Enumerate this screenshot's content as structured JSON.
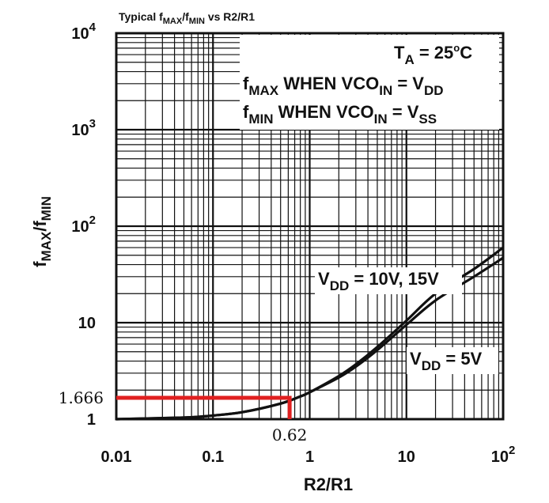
{
  "chart_data": {
    "type": "line",
    "title": {
      "base": "Typical f",
      "sub1": "MAX",
      "mid": "/f",
      "sub2": "MIN",
      "tail": " vs R2/R1"
    },
    "xlabel": "R2/R1",
    "ylabel": {
      "f1": "f",
      "s1": "MAX",
      "mid": "/f",
      "s2": "MIN"
    },
    "x_scale": "log",
    "y_scale": "log",
    "xlim": [
      0.01,
      100
    ],
    "ylim": [
      1,
      10000
    ],
    "grid": true,
    "x_ticks": [
      {
        "value": 0.01,
        "label": "0.01"
      },
      {
        "value": 0.1,
        "label": "0.1"
      },
      {
        "value": 1,
        "label": "1"
      },
      {
        "value": 10,
        "label": "10"
      },
      {
        "value": 100,
        "label": "10",
        "sup": "2"
      }
    ],
    "y_ticks": [
      {
        "value": 1,
        "label": "1"
      },
      {
        "value": 10,
        "label": "10"
      },
      {
        "value": 100,
        "label": "10",
        "sup": "2"
      },
      {
        "value": 1000,
        "label": "10",
        "sup": "3"
      },
      {
        "value": 10000,
        "label": "10",
        "sup": "4"
      }
    ],
    "legend_box": {
      "line1": {
        "a": "T",
        "b": "A",
        "c": " = 25",
        "d": "C"
      },
      "line2": {
        "a": "f",
        "b": "MAX",
        "c": " WHEN VCO",
        "d": "IN",
        "e": " = V",
        "f": "DD"
      },
      "line3": {
        "a": "f",
        "b": "MIN",
        "c": " WHEN VCO",
        "d": "IN",
        "e": " = V",
        "f": "SS"
      }
    },
    "series": [
      {
        "name": {
          "a": "V",
          "b": "DD",
          "c": " = 10V, 15V"
        },
        "x": [
          0.01,
          0.05,
          0.1,
          0.2,
          0.5,
          0.8,
          1,
          2,
          3,
          5,
          10,
          20,
          50,
          100
        ],
        "y": [
          1.0,
          1.04,
          1.09,
          1.18,
          1.45,
          1.72,
          1.9,
          2.8,
          3.7,
          5.6,
          10.5,
          20,
          36,
          60
        ]
      },
      {
        "name": {
          "a": "V",
          "b": "DD",
          "c": " = 5V"
        },
        "x": [
          0.01,
          0.05,
          0.1,
          0.2,
          0.5,
          0.8,
          1,
          2,
          3,
          5,
          10,
          20,
          50,
          100
        ],
        "y": [
          1.0,
          1.04,
          1.09,
          1.18,
          1.45,
          1.72,
          1.9,
          2.7,
          3.5,
          5.2,
          9.5,
          17,
          30,
          47
        ]
      }
    ],
    "marker": {
      "x": 0.62,
      "y": 1.666,
      "x_label": "0.62",
      "y_label": "1.666",
      "color": "#e02020"
    },
    "colors": {
      "curve": "#111111",
      "grid": "#111111",
      "marker": "#e02020"
    }
  }
}
